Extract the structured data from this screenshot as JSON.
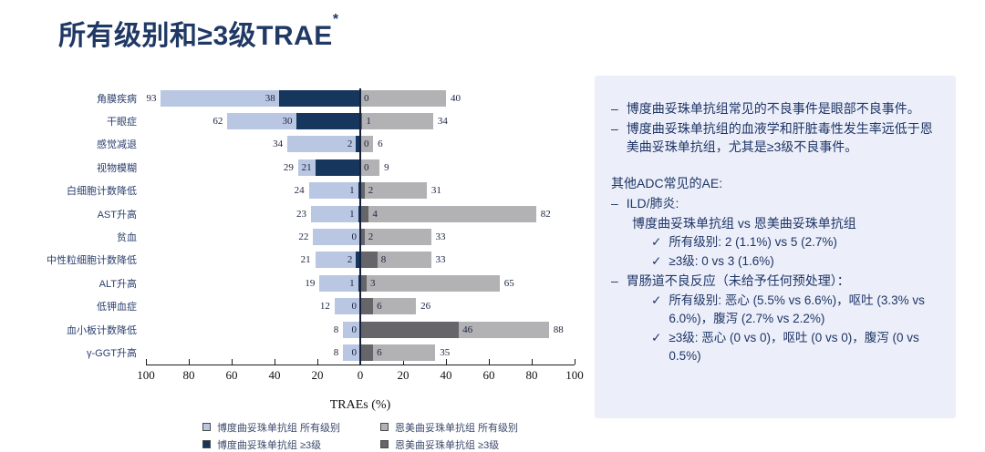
{
  "title": {
    "text": "所有级别和≥3级TRAE",
    "superscript": "*"
  },
  "colors": {
    "title": "#1f3864",
    "panel_bg": "#eceff9",
    "panel_text": "#1e3567",
    "bar_left_all": "#b9c7e3",
    "bar_left_g3": "#17365d",
    "bar_right_all": "#b2b2b5",
    "bar_right_g3": "#65656a",
    "axis_line": "#1a1a1a",
    "center_line": "#14213d"
  },
  "chart_data": {
    "type": "bar",
    "variant": "butterfly-horizontal",
    "title": "",
    "xlabel": "TRAEs (%)",
    "xlim_each_side": [
      0,
      100
    ],
    "axis_ticks": [
      100,
      80,
      60,
      40,
      20,
      0,
      20,
      40,
      60,
      80,
      100
    ],
    "grid": false,
    "legend_position": "bottom",
    "series_meaning": {
      "left_all": "博度曲妥珠单抗组 所有级别",
      "left_g3": "博度曲妥珠单抗组 ≥3级",
      "right_all": "恩美曲妥珠单抗组 所有级别",
      "right_g3": "恩美曲妥珠单抗组 ≥3级"
    },
    "rows": [
      {
        "label": "角膜疾病",
        "left_all": 93,
        "left_g3": 38,
        "right_g3": 0,
        "right_all": 40
      },
      {
        "label": "干眼症",
        "left_all": 62,
        "left_g3": 30,
        "right_g3": 1,
        "right_all": 34
      },
      {
        "label": "感觉减退",
        "left_all": 34,
        "left_g3": 2,
        "right_g3": 0,
        "right_all": 6
      },
      {
        "label": "视物模糊",
        "left_all": 29,
        "left_g3": 21,
        "right_g3": 0,
        "right_all": 9
      },
      {
        "label": "白细胞计数降低",
        "left_all": 24,
        "left_g3": 1,
        "right_g3": 2,
        "right_all": 31
      },
      {
        "label": "AST升高",
        "left_all": 23,
        "left_g3": 1,
        "right_g3": 4,
        "right_all": 82
      },
      {
        "label": "贫血",
        "left_all": 22,
        "left_g3": 0,
        "right_g3": 2,
        "right_all": 33
      },
      {
        "label": "中性粒细胞计数降低",
        "left_all": 21,
        "left_g3": 2,
        "right_g3": 8,
        "right_all": 33
      },
      {
        "label": "ALT升高",
        "left_all": 19,
        "left_g3": 1,
        "right_g3": 3,
        "right_all": 65
      },
      {
        "label": "低钾血症",
        "left_all": 12,
        "left_g3": 0,
        "right_g3": 6,
        "right_all": 26
      },
      {
        "label": "血小板计数降低",
        "left_all": 8,
        "left_g3": 0,
        "right_g3": 46,
        "right_all": 88
      },
      {
        "label": "γ-GGT升高",
        "left_all": 8,
        "left_g3": 0,
        "right_g3": 6,
        "right_all": 35
      }
    ],
    "legend": [
      {
        "label": "博度曲妥珠单抗组 所有级别",
        "color_key": "bar_left_all"
      },
      {
        "label": "博度曲妥珠单抗组 ≥3级",
        "color_key": "bar_left_g3"
      },
      {
        "label": "恩美曲妥珠单抗组 所有级别",
        "color_key": "bar_right_all"
      },
      {
        "label": "恩美曲妥珠单抗组 ≥3级",
        "color_key": "bar_right_g3"
      }
    ]
  },
  "panel": {
    "markers": {
      "dash": "–",
      "check": "✓"
    },
    "lines": [
      {
        "kind": "dash",
        "text": "博度曲妥珠单抗组常见的不良事件是眼部不良事件。"
      },
      {
        "kind": "dash",
        "text": "博度曲妥珠单抗组的血液学和肝脏毒性发生率远低于恩美曲妥珠单抗组，尤其是≥3级不良事件。"
      },
      {
        "kind": "gap"
      },
      {
        "kind": "header",
        "text": "其他ADC常见的AE:"
      },
      {
        "kind": "dash",
        "text": "ILD/肺炎:"
      },
      {
        "kind": "plain",
        "text": "博度曲妥珠单抗组 vs 恩美曲妥珠单抗组"
      },
      {
        "kind": "check",
        "text": "所有级别: 2 (1.1%) vs 5 (2.7%)"
      },
      {
        "kind": "check",
        "text": "≥3级: 0 vs 3 (1.6%)"
      },
      {
        "kind": "dash",
        "text": "胃肠道不良反应（未给予任何预处理）："
      },
      {
        "kind": "check",
        "text": "所有级别: 恶心 (5.5% vs 6.6%)，呕吐 (3.3% vs 6.0%)，腹泻 (2.7% vs 2.2%)"
      },
      {
        "kind": "check",
        "text": "≥3级: 恶心 (0 vs 0)，呕吐 (0 vs 0)，腹泻 (0 vs 0.5%)"
      }
    ]
  }
}
